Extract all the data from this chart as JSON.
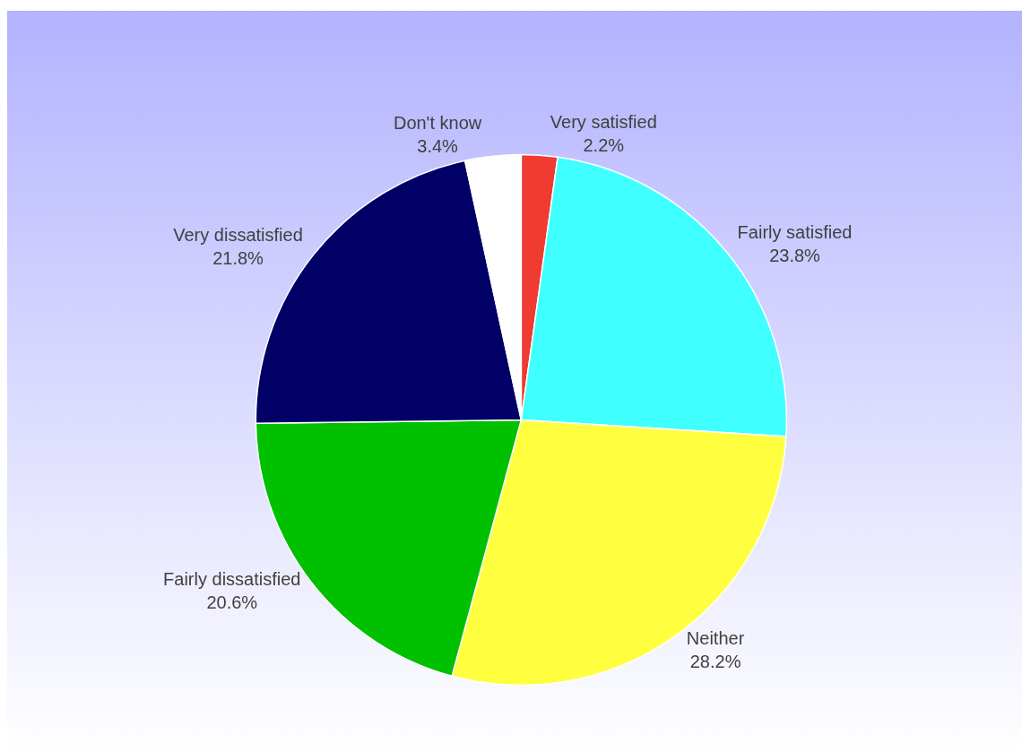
{
  "chart_data": {
    "type": "pie",
    "categories": [
      "Very satisfied",
      "Fairly satisfied",
      "Neither",
      "Fairly dissatisfied",
      "Very dissatisfied",
      "Don't know"
    ],
    "values": [
      2.2,
      23.8,
      28.2,
      20.6,
      21.8,
      3.4
    ],
    "value_labels": [
      "2.2%",
      "23.8%",
      "28.2%",
      "20.6%",
      "21.8%",
      "3.4%"
    ],
    "colors": [
      "#ef3b30",
      "#40ffff",
      "#ffff40",
      "#00c000",
      "#000066",
      "#ffffff"
    ],
    "legend": false
  }
}
